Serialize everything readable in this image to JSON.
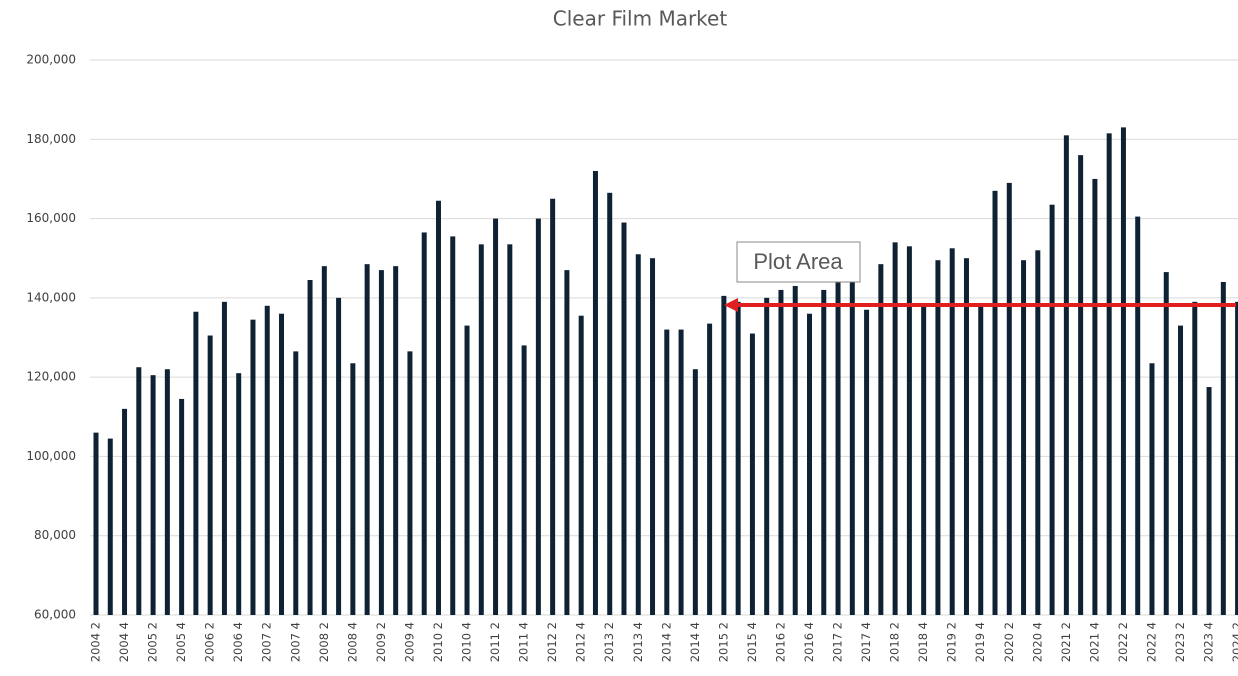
{
  "chart_data": {
    "type": "bar",
    "title": "Clear Film Market",
    "tooltip": "Plot Area",
    "color": "#0f2233",
    "categories": [
      "2004 2",
      null,
      "2004 4",
      null,
      "2005 2",
      null,
      "2005 4",
      null,
      "2006 2",
      null,
      "2006 4",
      null,
      "2007 2",
      null,
      "2007 4",
      null,
      "2008 2",
      null,
      "2008 4",
      null,
      "2009 2",
      null,
      "2009 4",
      null,
      "2010 2",
      null,
      "2010 4",
      null,
      "2011 2",
      null,
      "2011 4",
      null,
      "2012 2",
      null,
      "2012 4",
      null,
      "2013 2",
      null,
      "2013 4",
      null,
      "2014 2",
      null,
      "2014 4",
      null,
      "2015 2",
      null,
      "2015 4",
      null,
      "2016 2",
      null,
      "2016 4",
      null,
      "2017 2",
      null,
      "2017 4",
      null,
      "2018 2",
      null,
      "2018 4",
      null,
      "2019 2",
      null,
      "2019 4",
      null,
      "2020 2",
      null,
      "2020 4",
      null,
      "2021 2",
      null,
      "2021 4",
      null,
      "2022 2",
      null,
      "2022 4",
      null,
      "2023 2",
      null,
      "2023 4",
      null,
      "2024 2"
    ],
    "values": [
      106000,
      104500,
      112000,
      122500,
      120500,
      122000,
      114500,
      136500,
      130500,
      139000,
      121000,
      134500,
      138000,
      136000,
      126500,
      144500,
      148000,
      140000,
      123500,
      148500,
      147000,
      148000,
      126500,
      156500,
      164500,
      155500,
      133000,
      153500,
      160000,
      153500,
      128000,
      160000,
      165000,
      147000,
      135500,
      172000,
      166500,
      159000,
      151000,
      150000,
      132000,
      132000,
      122000,
      133500,
      140500,
      139000,
      131000,
      140000,
      142000,
      143000,
      136000,
      142000,
      145000,
      145000,
      137000,
      148500,
      154000,
      153000,
      138000,
      149500,
      152500,
      150000,
      138000,
      167000,
      169000,
      149500,
      152000,
      163500,
      181000,
      176000,
      170000,
      181500,
      183000,
      160500,
      123500,
      146500,
      133000,
      139000,
      117500,
      144000,
      139000
    ],
    "ylim": [
      60000,
      200000
    ],
    "yticks": [
      {
        "value": 60000,
        "label": "60,000"
      },
      {
        "value": 80000,
        "label": "80,000"
      },
      {
        "value": 100000,
        "label": "100,000"
      },
      {
        "value": 120000,
        "label": "120,000"
      },
      {
        "value": 140000,
        "label": "140,000"
      },
      {
        "value": 160000,
        "label": "160,000"
      },
      {
        "value": 180000,
        "label": "180,000"
      },
      {
        "value": 200000,
        "label": "200,000"
      }
    ],
    "grid": true
  }
}
